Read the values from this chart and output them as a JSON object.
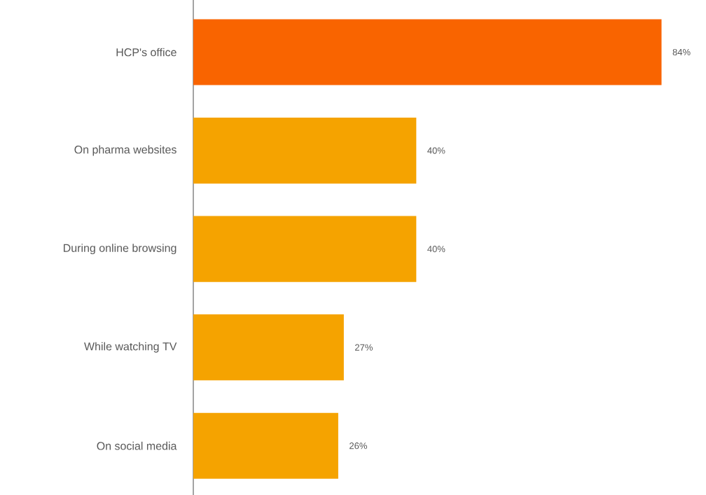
{
  "chart_data": {
    "type": "bar",
    "orientation": "horizontal",
    "categories": [
      "HCP's office",
      "On pharma websites",
      "During online browsing",
      "While watching TV",
      "On social media"
    ],
    "values": [
      84,
      40,
      40,
      27,
      26
    ],
    "value_labels": [
      "84%",
      "40%",
      "40%",
      "27%",
      "26%"
    ],
    "colors": [
      "#f96400",
      "#f5a300",
      "#f5a300",
      "#f5a300",
      "#f5a300"
    ]
  }
}
